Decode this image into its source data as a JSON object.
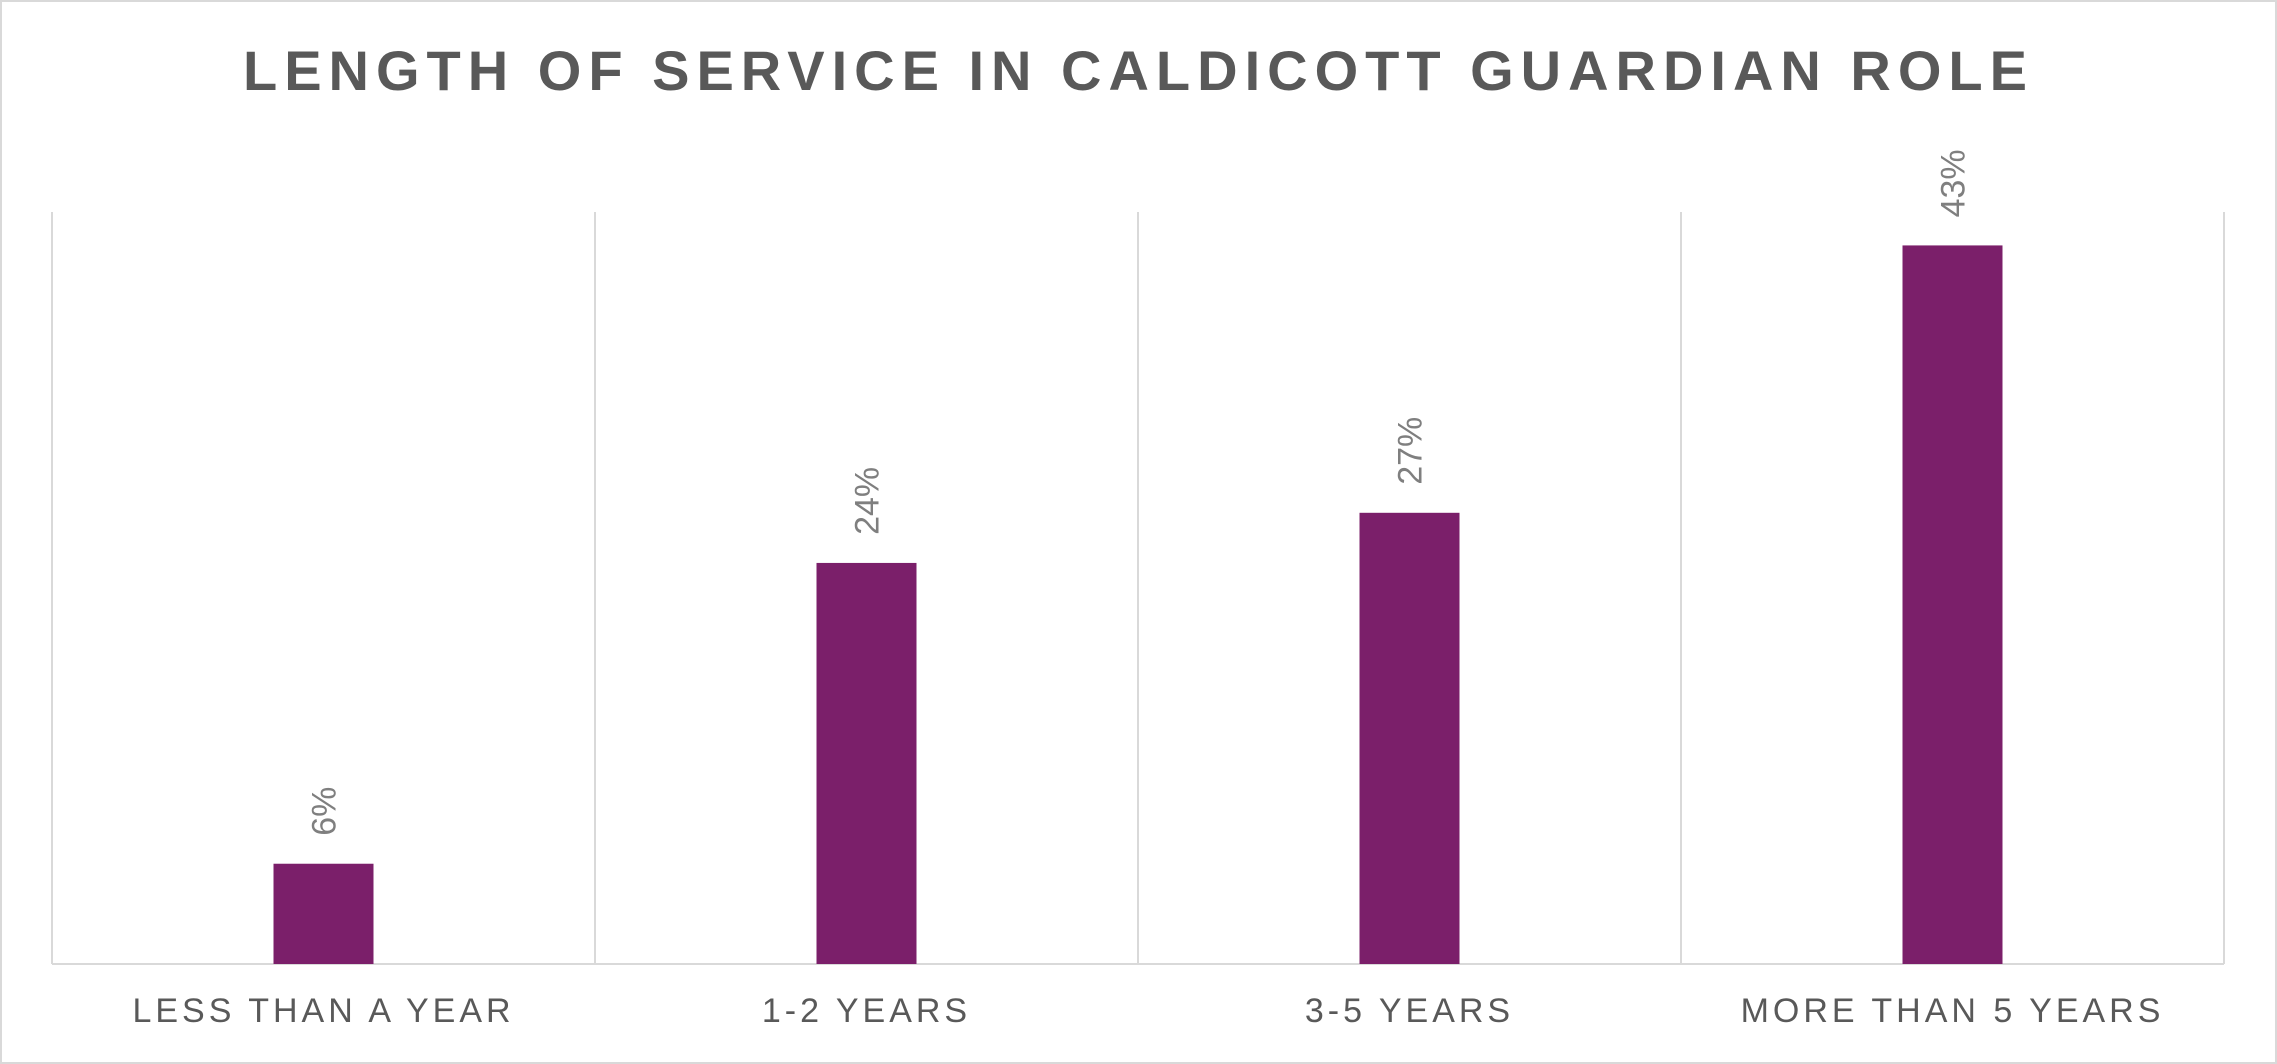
{
  "chart_data": {
    "type": "bar",
    "title": "LENGTH OF SERVICE IN CALDICOTT GUARDIAN ROLE",
    "categories": [
      "LESS THAN A YEAR",
      "1-2 YEARS",
      "3-5 YEARS",
      "MORE THAN 5 YEARS"
    ],
    "values": [
      6,
      24,
      27,
      43
    ],
    "data_labels": [
      "6%",
      "24%",
      "27%",
      "43%"
    ],
    "value_unit": "%",
    "xlabel": "",
    "ylabel": "",
    "ylim": [
      0,
      45
    ],
    "grid": "vertical category separators",
    "legend": "none",
    "bar_color": "#7b1f6a",
    "text_color": "#595959",
    "label_color": "#7f7f7f",
    "grid_color": "#d9d9d9"
  }
}
